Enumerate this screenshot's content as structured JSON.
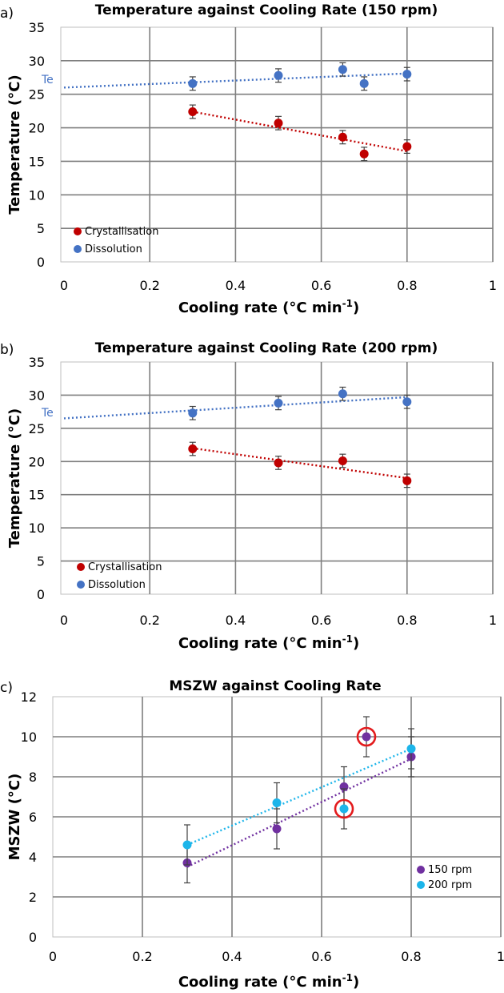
{
  "chart_data": [
    {
      "panel": "a)",
      "type": "scatter",
      "title": "Temperature against Cooling Rate (150 rpm)",
      "xlabel": "Cooling rate (°C min",
      "xlabel_sup": "-1",
      "xlabel_end": ")",
      "ylabel": "Temperature (°C)",
      "xlim": [
        0,
        1
      ],
      "ylim": [
        0,
        35
      ],
      "xticks": [
        "0",
        "0.2",
        "0.4",
        "0.6",
        "0.8",
        "1"
      ],
      "yticks": [
        "0",
        "5",
        "10",
        "15",
        "20",
        "25",
        "30",
        "35"
      ],
      "grid": true,
      "legend_position": "bottom-left",
      "annotation": "Te",
      "series": [
        {
          "name": "Crystallisation",
          "color": "#c00000",
          "x": [
            0.3,
            0.5,
            0.65,
            0.7,
            0.8
          ],
          "y": [
            22.4,
            20.7,
            18.6,
            16.1,
            17.2
          ],
          "error": 1.0,
          "trend": {
            "x": [
              0.3,
              0.8
            ],
            "y": [
              22.4,
              16.5
            ]
          }
        },
        {
          "name": "Dissolution",
          "color": "#4472c4",
          "x": [
            0.3,
            0.5,
            0.65,
            0.7,
            0.8
          ],
          "y": [
            26.6,
            27.8,
            28.7,
            26.6,
            28.0
          ],
          "error": 1.0,
          "trend": {
            "x": [
              0.0,
              0.8
            ],
            "y": [
              26.0,
              28.1
            ]
          }
        }
      ]
    },
    {
      "panel": "b)",
      "type": "scatter",
      "title": "Temperature against Cooling Rate (200 rpm)",
      "xlabel": "Cooling rate (°C min",
      "xlabel_sup": "-1",
      "xlabel_end": ")",
      "ylabel": "Temperature (°C)",
      "xlim": [
        0,
        1
      ],
      "ylim": [
        0,
        35
      ],
      "xticks": [
        "0",
        "0.2",
        "0.4",
        "0.6",
        "0.8",
        "1"
      ],
      "yticks": [
        "0",
        "5",
        "10",
        "15",
        "20",
        "25",
        "30",
        "35"
      ],
      "grid": true,
      "legend_position": "bottom-left",
      "annotation": "Te",
      "series": [
        {
          "name": "Crystallisation",
          "color": "#c00000",
          "x": [
            0.3,
            0.5,
            0.65,
            0.8
          ],
          "y": [
            21.9,
            19.8,
            20.1,
            17.1
          ],
          "error": 1.0,
          "trend": {
            "x": [
              0.3,
              0.8
            ],
            "y": [
              22.0,
              17.5
            ]
          }
        },
        {
          "name": "Dissolution",
          "color": "#4472c4",
          "x": [
            0.3,
            0.5,
            0.65,
            0.8
          ],
          "y": [
            27.3,
            28.8,
            30.2,
            29.0
          ],
          "error": 1.0,
          "trend": {
            "x": [
              0.0,
              0.8
            ],
            "y": [
              26.5,
              29.7
            ]
          }
        }
      ]
    },
    {
      "panel": "c)",
      "type": "scatter",
      "title": "MSZW against Cooling Rate",
      "xlabel": "Cooling rate (°C min",
      "xlabel_sup": "-1",
      "xlabel_end": ")",
      "ylabel": "MSZW (°C)",
      "xlim": [
        0,
        1
      ],
      "ylim": [
        0,
        12
      ],
      "xticks": [
        "0",
        "0.2",
        "0.4",
        "0.6",
        "0.8",
        "1"
      ],
      "yticks": [
        "0",
        "2",
        "4",
        "6",
        "8",
        "10",
        "12"
      ],
      "grid": true,
      "legend_position": "bottom-right",
      "highlighted": [
        {
          "x": 0.7,
          "y": 10.0
        },
        {
          "x": 0.65,
          "y": 6.4
        }
      ],
      "highlight_color": "#e31a1c",
      "series": [
        {
          "name": "150 rpm",
          "color": "#7030a0",
          "x": [
            0.3,
            0.5,
            0.65,
            0.7,
            0.8
          ],
          "y": [
            3.7,
            5.4,
            7.5,
            10.0,
            9.0
          ],
          "error": 1.0,
          "trend": {
            "x": [
              0.3,
              0.8
            ],
            "y": [
              3.5,
              8.9
            ]
          }
        },
        {
          "name": "200 rpm",
          "color": "#1cb5ea",
          "x": [
            0.3,
            0.5,
            0.65,
            0.8
          ],
          "y": [
            4.6,
            6.7,
            6.4,
            9.4
          ],
          "error": 1.0,
          "trend": {
            "x": [
              0.3,
              0.8
            ],
            "y": [
              4.6,
              9.4
            ]
          }
        }
      ]
    }
  ]
}
